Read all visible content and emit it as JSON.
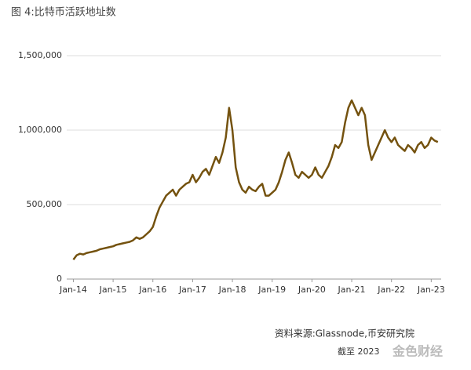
{
  "chart_data": {
    "type": "line",
    "title": "图 4:比特币活跃地址数",
    "source": "资料来源:Glassnode,币安研究院",
    "note": "截至 2023",
    "watermark": "金色财经",
    "x": [
      "2014-01",
      "2014-02",
      "2014-03",
      "2014-04",
      "2014-05",
      "2014-06",
      "2014-07",
      "2014-08",
      "2014-09",
      "2014-10",
      "2014-11",
      "2014-12",
      "2015-01",
      "2015-02",
      "2015-03",
      "2015-04",
      "2015-05",
      "2015-06",
      "2015-07",
      "2015-08",
      "2015-09",
      "2015-10",
      "2015-11",
      "2015-12",
      "2016-01",
      "2016-02",
      "2016-03",
      "2016-04",
      "2016-05",
      "2016-06",
      "2016-07",
      "2016-08",
      "2016-09",
      "2016-10",
      "2016-11",
      "2016-12",
      "2017-01",
      "2017-02",
      "2017-03",
      "2017-04",
      "2017-05",
      "2017-06",
      "2017-07",
      "2017-08",
      "2017-09",
      "2017-10",
      "2017-11",
      "2017-12",
      "2018-01",
      "2018-02",
      "2018-03",
      "2018-04",
      "2018-05",
      "2018-06",
      "2018-07",
      "2018-08",
      "2018-09",
      "2018-10",
      "2018-11",
      "2018-12",
      "2019-01",
      "2019-02",
      "2019-03",
      "2019-04",
      "2019-05",
      "2019-06",
      "2019-07",
      "2019-08",
      "2019-09",
      "2019-10",
      "2019-11",
      "2019-12",
      "2020-01",
      "2020-02",
      "2020-03",
      "2020-04",
      "2020-05",
      "2020-06",
      "2020-07",
      "2020-08",
      "2020-09",
      "2020-10",
      "2020-11",
      "2020-12",
      "2021-01",
      "2021-02",
      "2021-03",
      "2021-04",
      "2021-05",
      "2021-06",
      "2021-07",
      "2021-08",
      "2021-09",
      "2021-10",
      "2021-11",
      "2021-12",
      "2022-01",
      "2022-02",
      "2022-03",
      "2022-04",
      "2022-05",
      "2022-06",
      "2022-07",
      "2022-08",
      "2022-09",
      "2022-10",
      "2022-11",
      "2022-12",
      "2023-01",
      "2023-02",
      "2023-03"
    ],
    "series": [
      {
        "color": "#74520f",
        "values": [
          130000,
          160000,
          170000,
          165000,
          175000,
          180000,
          185000,
          190000,
          200000,
          205000,
          210000,
          215000,
          220000,
          230000,
          235000,
          240000,
          245000,
          250000,
          260000,
          280000,
          270000,
          280000,
          300000,
          320000,
          350000,
          420000,
          480000,
          520000,
          560000,
          580000,
          600000,
          560000,
          600000,
          620000,
          640000,
          650000,
          700000,
          650000,
          680000,
          720000,
          740000,
          700000,
          760000,
          820000,
          780000,
          850000,
          950000,
          1150000,
          1000000,
          750000,
          650000,
          600000,
          580000,
          620000,
          600000,
          590000,
          620000,
          640000,
          560000,
          560000,
          580000,
          600000,
          650000,
          720000,
          800000,
          850000,
          780000,
          700000,
          680000,
          720000,
          700000,
          680000,
          700000,
          750000,
          700000,
          680000,
          720000,
          760000,
          820000,
          900000,
          880000,
          920000,
          1050000,
          1150000,
          1200000,
          1150000,
          1100000,
          1150000,
          1100000,
          900000,
          800000,
          850000,
          900000,
          950000,
          1000000,
          950000,
          920000,
          950000,
          900000,
          880000,
          860000,
          900000,
          880000,
          850000,
          900000,
          920000,
          880000,
          900000,
          950000,
          930000,
          920000
        ]
      }
    ],
    "xlim": [
      "2013-11",
      "2023-04"
    ],
    "xticks": [
      {
        "value": "2014-01",
        "label": "Jan-14"
      },
      {
        "value": "2015-01",
        "label": "Jan-15"
      },
      {
        "value": "2016-01",
        "label": "Jan-16"
      },
      {
        "value": "2017-01",
        "label": "Jan-17"
      },
      {
        "value": "2018-01",
        "label": "Jan-18"
      },
      {
        "value": "2019-01",
        "label": "Jan-19"
      },
      {
        "value": "2020-01",
        "label": "Jan-20"
      },
      {
        "value": "2021-01",
        "label": "Jan-21"
      },
      {
        "value": "2022-01",
        "label": "Jan-22"
      },
      {
        "value": "2023-01",
        "label": "Jan-23"
      }
    ],
    "ylim": [
      0,
      1500000
    ],
    "yticks": [
      0,
      {
        "value": 500000,
        "label": "500,000"
      },
      {
        "value": 1000000,
        "label": "1,000,000"
      },
      {
        "value": 1500000,
        "label": "1,500,000"
      }
    ],
    "grid": true
  }
}
